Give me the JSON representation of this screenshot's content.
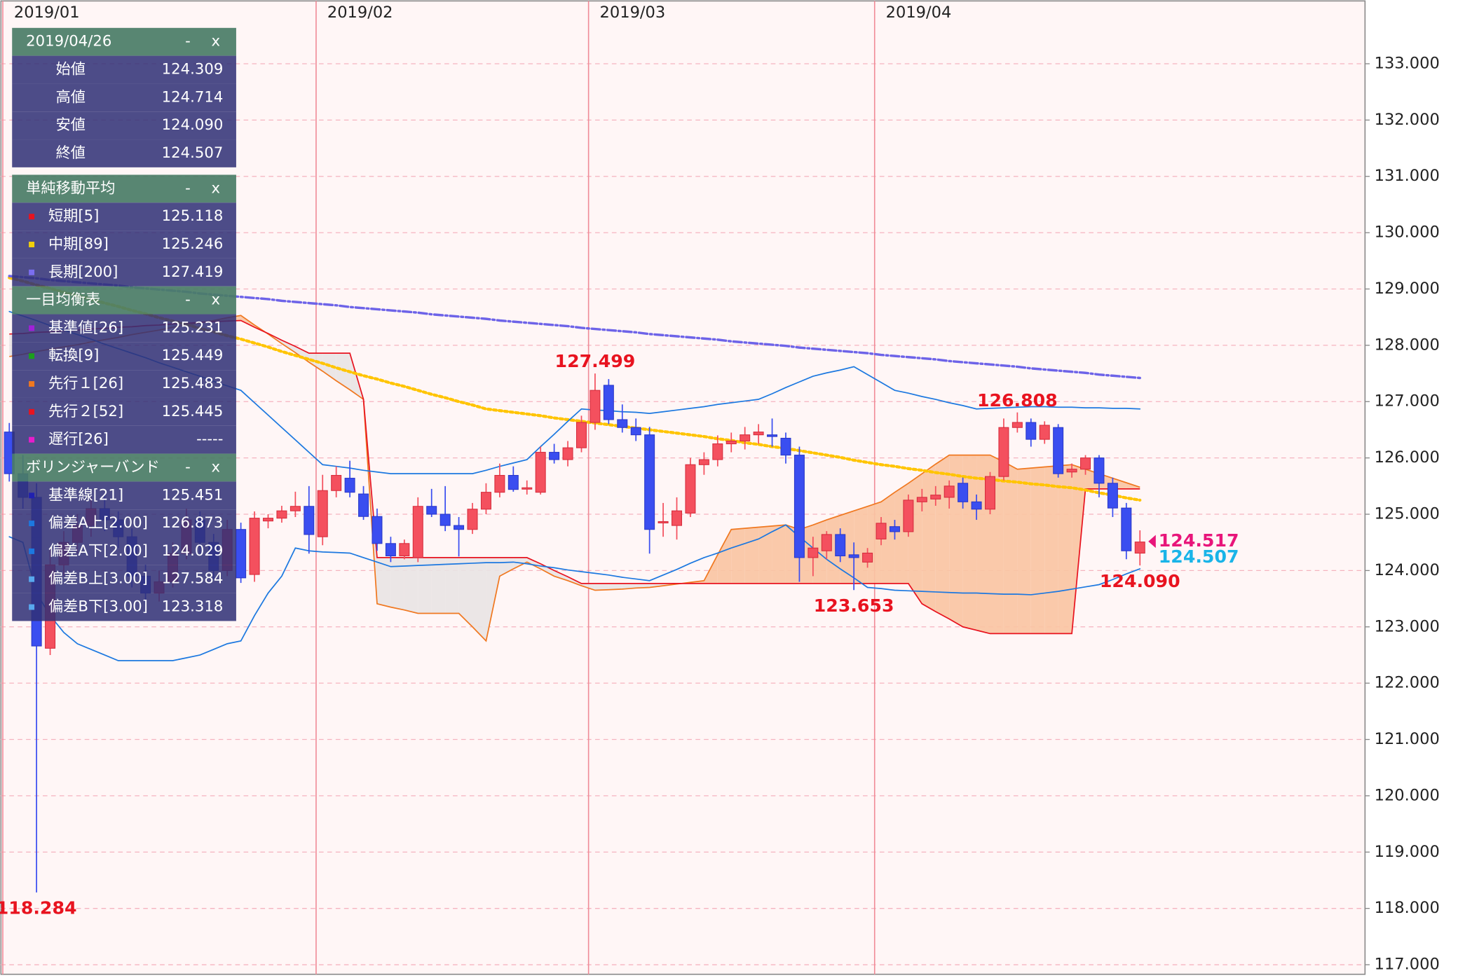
{
  "chart_data": {
    "type": "candlestick",
    "categories": [
      "2019/01",
      null,
      null,
      null,
      null,
      null,
      null,
      null,
      null,
      null,
      null,
      null,
      null,
      null,
      null,
      null,
      null,
      null,
      null,
      null,
      null,
      null,
      null,
      "2019/02",
      null,
      null,
      null,
      null,
      null,
      null,
      null,
      null,
      null,
      null,
      null,
      null,
      null,
      null,
      null,
      null,
      null,
      null,
      null,
      "2019/03",
      null,
      null,
      null,
      null,
      null,
      null,
      null,
      null,
      null,
      null,
      null,
      null,
      null,
      null,
      null,
      null,
      null,
      null,
      null,
      null,
      "2019/04",
      null,
      null,
      null,
      null,
      null,
      null,
      null,
      null,
      null,
      null,
      null,
      null,
      null,
      null,
      null,
      null,
      null,
      null,
      null
    ],
    "open": [
      126.46,
      125.72,
      125.3,
      122.62,
      124.1,
      124.5,
      124.8,
      125.1,
      124.9,
      124.6,
      123.9,
      123.6,
      123.8,
      124.3,
      124.9,
      124.5,
      124.0,
      124.73,
      123.93,
      124.88,
      124.93,
      125.06,
      125.14,
      124.6,
      125.42,
      125.64,
      125.36,
      124.96,
      124.48,
      124.26,
      124.23,
      125.14,
      125.0,
      124.8,
      124.73,
      125.09,
      125.39,
      125.69,
      125.45,
      125.39,
      126.1,
      125.97,
      126.18,
      126.63,
      127.29,
      126.68,
      126.54,
      126.41,
      124.85,
      124.8,
      125.02,
      125.88,
      125.97,
      126.25,
      126.3,
      126.41,
      126.41,
      126.35,
      126.05,
      124.23,
      124.35,
      124.64,
      124.28,
      124.15,
      124.56,
      124.78,
      124.69,
      125.22,
      125.27,
      125.3,
      125.55,
      125.22,
      125.09,
      125.67,
      126.54,
      126.63,
      126.33,
      126.54,
      125.75,
      125.8,
      126.0,
      125.55,
      125.11,
      124.309
    ],
    "high": [
      126.62,
      126.05,
      125.55,
      124.4,
      124.7,
      125.0,
      125.3,
      125.35,
      125.05,
      124.75,
      124.1,
      124.0,
      124.5,
      125.1,
      125.05,
      124.65,
      124.9,
      124.85,
      125.05,
      125.0,
      125.15,
      125.4,
      125.5,
      125.7,
      125.85,
      125.95,
      125.5,
      125.1,
      124.6,
      124.55,
      125.3,
      125.45,
      125.5,
      124.95,
      125.2,
      125.55,
      125.9,
      125.85,
      125.6,
      126.2,
      126.25,
      126.3,
      126.75,
      127.499,
      127.4,
      126.95,
      126.7,
      126.55,
      125.2,
      125.3,
      126.0,
      126.1,
      126.4,
      126.45,
      126.55,
      126.6,
      126.7,
      126.45,
      126.2,
      124.6,
      124.7,
      124.75,
      124.5,
      124.4,
      124.95,
      124.9,
      125.35,
      125.45,
      125.5,
      125.6,
      125.65,
      125.35,
      125.75,
      126.7,
      126.808,
      126.7,
      126.65,
      126.6,
      125.9,
      126.05,
      126.05,
      125.65,
      125.2,
      124.714
    ],
    "low": [
      125.58,
      125.1,
      118.284,
      122.5,
      123.9,
      124.3,
      124.6,
      124.7,
      124.4,
      123.7,
      123.4,
      123.45,
      123.7,
      124.2,
      124.3,
      123.85,
      123.9,
      123.78,
      123.8,
      124.75,
      124.85,
      124.95,
      124.3,
      124.45,
      125.3,
      125.3,
      124.9,
      124.35,
      124.15,
      124.2,
      124.15,
      124.95,
      124.7,
      124.25,
      124.65,
      125.0,
      125.3,
      125.4,
      125.35,
      125.35,
      125.9,
      125.85,
      126.1,
      126.5,
      126.6,
      126.45,
      126.3,
      124.3,
      124.6,
      124.55,
      124.95,
      125.7,
      125.85,
      126.1,
      126.15,
      126.25,
      126.2,
      125.9,
      123.8,
      123.9,
      124.2,
      124.15,
      123.653,
      124.05,
      124.45,
      124.55,
      124.6,
      125.05,
      125.15,
      125.1,
      125.1,
      124.9,
      125.0,
      125.6,
      126.45,
      126.2,
      126.25,
      125.65,
      125.65,
      125.7,
      125.3,
      124.95,
      124.2,
      124.09
    ],
    "close": [
      125.72,
      125.3,
      122.66,
      124.1,
      124.5,
      124.8,
      125.1,
      124.9,
      124.6,
      123.9,
      123.6,
      123.8,
      124.3,
      124.9,
      124.5,
      124.0,
      124.73,
      123.87,
      124.93,
      124.93,
      125.06,
      125.14,
      124.64,
      125.42,
      125.69,
      125.39,
      124.96,
      124.48,
      124.26,
      124.48,
      125.14,
      125.0,
      124.8,
      124.73,
      125.09,
      125.39,
      125.69,
      125.44,
      125.47,
      126.1,
      125.97,
      126.18,
      126.63,
      127.2,
      126.68,
      126.54,
      126.41,
      124.73,
      124.87,
      125.06,
      125.88,
      125.97,
      126.25,
      126.3,
      126.41,
      126.46,
      126.38,
      126.05,
      124.23,
      124.4,
      124.64,
      124.26,
      124.23,
      124.31,
      124.84,
      124.69,
      125.25,
      125.3,
      125.34,
      125.5,
      125.22,
      125.09,
      125.67,
      126.54,
      126.63,
      126.33,
      126.58,
      125.72,
      125.8,
      126.0,
      125.55,
      125.11,
      124.35,
      124.507
    ],
    "up_color": "#f4505e",
    "down_color": "#3a4ef0",
    "series": [
      {
        "color": "#ffc400",
        "dash": "dotted",
        "values": [
          129.2,
          129.14,
          129.07,
          129.01,
          128.94,
          128.88,
          128.82,
          128.75,
          128.69,
          128.62,
          128.56,
          128.49,
          128.43,
          128.37,
          128.3,
          128.24,
          128.17,
          128.11,
          128.04,
          127.97,
          127.89,
          127.82,
          127.75,
          127.68,
          127.6,
          127.53,
          127.46,
          127.4,
          127.33,
          127.27,
          127.2,
          127.13,
          127.07,
          127.0,
          126.94,
          126.87,
          126.84,
          126.81,
          126.78,
          126.75,
          126.71,
          126.68,
          126.65,
          126.62,
          126.59,
          126.56,
          126.53,
          126.5,
          126.47,
          126.44,
          126.41,
          126.38,
          126.34,
          126.31,
          126.27,
          126.24,
          126.2,
          126.17,
          126.13,
          126.09,
          126.05,
          126.01,
          125.96,
          125.92,
          125.88,
          125.85,
          125.81,
          125.78,
          125.74,
          125.71,
          125.67,
          125.64,
          125.62,
          125.59,
          125.57,
          125.54,
          125.52,
          125.49,
          125.47,
          125.43,
          125.38,
          125.34,
          125.29,
          125.25
        ]
      },
      {
        "color": "#6d63e8",
        "dash": "dash-dot",
        "values": [
          129.23,
          129.21,
          129.19,
          129.16,
          129.14,
          129.12,
          129.1,
          129.08,
          129.06,
          129.03,
          129.01,
          128.99,
          128.97,
          128.95,
          128.92,
          128.9,
          128.88,
          128.86,
          128.84,
          128.82,
          128.79,
          128.77,
          128.75,
          128.73,
          128.71,
          128.68,
          128.66,
          128.64,
          128.62,
          128.6,
          128.58,
          128.55,
          128.53,
          128.51,
          128.49,
          128.47,
          128.44,
          128.42,
          128.4,
          128.38,
          128.36,
          128.34,
          128.31,
          128.29,
          128.27,
          128.25,
          128.23,
          128.2,
          128.18,
          128.16,
          128.14,
          128.12,
          128.1,
          128.07,
          128.05,
          128.03,
          128.01,
          127.99,
          127.96,
          127.94,
          127.92,
          127.9,
          127.88,
          127.86,
          127.83,
          127.81,
          127.79,
          127.77,
          127.75,
          127.72,
          127.7,
          127.68,
          127.66,
          127.64,
          127.62,
          127.59,
          127.57,
          127.55,
          127.53,
          127.51,
          127.48,
          127.46,
          127.44,
          127.42
        ]
      },
      {
        "color": "#1c78e0",
        "dash": "solid",
        "values": [
          128.6,
          128.52,
          128.44,
          128.35,
          128.27,
          128.19,
          128.11,
          128.02,
          127.94,
          127.86,
          127.78,
          127.69,
          127.61,
          127.53,
          127.45,
          127.36,
          127.28,
          127.2,
          126.98,
          126.76,
          126.54,
          126.32,
          126.1,
          125.88,
          125.85,
          125.82,
          125.78,
          125.75,
          125.72,
          125.72,
          125.72,
          125.72,
          125.72,
          125.72,
          125.72,
          125.78,
          125.85,
          125.91,
          125.97,
          126.2,
          126.42,
          126.65,
          126.87,
          126.85,
          126.84,
          126.82,
          126.81,
          126.79,
          126.82,
          126.85,
          126.88,
          126.91,
          126.95,
          126.98,
          127.01,
          127.04,
          127.14,
          127.25,
          127.35,
          127.45,
          127.51,
          127.56,
          127.62,
          127.48,
          127.34,
          127.2,
          127.15,
          127.09,
          127.04,
          126.98,
          126.93,
          126.87,
          126.88,
          126.89,
          126.9,
          126.91,
          126.91,
          126.9,
          126.9,
          126.89,
          126.89,
          126.88,
          126.88,
          126.87
        ]
      },
      {
        "color": "#1c78e0",
        "dash": "solid",
        "values": [
          124.6,
          124.5,
          123.6,
          123.2,
          122.9,
          122.7,
          122.6,
          122.5,
          122.4,
          122.4,
          122.4,
          122.4,
          122.4,
          122.45,
          122.5,
          122.6,
          122.7,
          122.75,
          123.2,
          123.6,
          123.9,
          124.4,
          124.35,
          124.33,
          124.32,
          124.31,
          124.23,
          124.15,
          124.07,
          124.08,
          124.09,
          124.1,
          124.11,
          124.12,
          124.13,
          124.14,
          124.14,
          124.15,
          124.12,
          124.08,
          124.05,
          124.01,
          123.98,
          123.95,
          123.92,
          123.88,
          123.85,
          123.82,
          123.92,
          124.02,
          124.13,
          124.23,
          124.31,
          124.4,
          124.48,
          124.56,
          124.69,
          124.81,
          124.6,
          124.4,
          124.2,
          124.03,
          123.87,
          123.7,
          123.68,
          123.65,
          123.64,
          123.63,
          123.62,
          123.61,
          123.6,
          123.6,
          123.59,
          123.58,
          123.58,
          123.57,
          123.6,
          123.63,
          123.67,
          123.71,
          123.75,
          123.84,
          123.94,
          124.03
        ]
      }
    ],
    "cloud": {
      "a_color": "#f07820",
      "b_color": "#e8131f",
      "up_fill": "#f9c4a2",
      "down_fill": "#e9e4e4",
      "a": [
        127.8,
        127.84,
        127.89,
        127.93,
        127.97,
        128.01,
        128.06,
        128.1,
        128.14,
        128.19,
        128.23,
        128.27,
        128.32,
        128.36,
        128.4,
        128.44,
        128.49,
        128.53,
        128.36,
        128.2,
        128.03,
        127.87,
        127.7,
        127.54,
        127.37,
        127.21,
        127.04,
        123.41,
        123.35,
        123.3,
        123.24,
        123.24,
        123.24,
        123.24,
        123.0,
        122.75,
        123.9,
        124.03,
        124.15,
        124.03,
        123.9,
        123.82,
        123.73,
        123.65,
        123.66,
        123.67,
        123.69,
        123.7,
        123.73,
        123.76,
        123.79,
        123.82,
        124.28,
        124.73,
        124.75,
        124.77,
        124.79,
        124.81,
        124.73,
        124.81,
        124.9,
        124.98,
        125.06,
        125.14,
        125.22,
        125.39,
        125.55,
        125.72,
        125.89,
        126.05,
        126.05,
        126.05,
        126.05,
        125.93,
        125.8,
        125.82,
        125.84,
        125.86,
        125.88,
        125.8,
        125.72,
        125.64,
        125.56,
        125.48
      ],
      "b": [
        128.2,
        128.21,
        128.23,
        128.24,
        128.26,
        128.27,
        128.29,
        128.3,
        128.32,
        128.33,
        128.35,
        128.36,
        128.38,
        128.39,
        128.41,
        128.42,
        128.43,
        128.44,
        128.32,
        128.21,
        128.09,
        127.98,
        127.86,
        127.86,
        127.86,
        127.86,
        127.04,
        124.23,
        124.23,
        124.23,
        124.23,
        124.23,
        124.23,
        124.23,
        124.23,
        124.23,
        124.23,
        124.23,
        124.23,
        124.12,
        124.0,
        123.89,
        123.77,
        123.77,
        123.77,
        123.77,
        123.77,
        123.77,
        123.77,
        123.77,
        123.77,
        123.77,
        123.77,
        123.77,
        123.77,
        123.77,
        123.77,
        123.77,
        123.77,
        123.77,
        123.77,
        123.77,
        123.77,
        123.77,
        123.77,
        123.77,
        123.77,
        123.41,
        123.27,
        123.14,
        123.0,
        122.94,
        122.88,
        122.88,
        122.88,
        122.88,
        122.88,
        122.88,
        122.88,
        125.45,
        125.45,
        125.45,
        125.45,
        125.45
      ]
    },
    "annotations": [
      {
        "value": 127.499,
        "label": "127.499"
      },
      {
        "value": 126.808,
        "label": "126.808"
      },
      {
        "value": 123.653,
        "label": "123.653"
      },
      {
        "value": 124.09,
        "label": "124.090"
      },
      {
        "value": 118.284,
        "label": "118.284"
      }
    ],
    "price_lines": [
      {
        "value": 124.517,
        "color": "#e8157a"
      },
      {
        "value": 124.507,
        "color": "#19b4e8"
      }
    ],
    "ylim": [
      116.83,
      134.0
    ],
    "yticks": [
      {
        "value": 117,
        "label": "117.000"
      },
      {
        "value": 118,
        "label": "118.000"
      },
      {
        "value": 119,
        "label": "119.000"
      },
      {
        "value": 120,
        "label": "120.000"
      },
      {
        "value": 121,
        "label": "121.000"
      },
      {
        "value": 122,
        "label": "122.000"
      },
      {
        "value": 123,
        "label": "123.000"
      },
      {
        "value": 124,
        "label": "124.000"
      },
      {
        "value": 125,
        "label": "125.000"
      },
      {
        "value": 126,
        "label": "126.000"
      },
      {
        "value": 127,
        "label": "127.000"
      },
      {
        "value": 128,
        "label": "128.000"
      },
      {
        "value": 129,
        "label": "129.000"
      },
      {
        "value": 130,
        "label": "130.000"
      },
      {
        "value": 131,
        "label": "131.000"
      },
      {
        "value": 132,
        "label": "132.000"
      },
      {
        "value": 133,
        "label": "133.000"
      }
    ],
    "grid": true
  },
  "info_panel": {
    "controls": [
      "-",
      "x"
    ],
    "sections": [
      {
        "title": "2019/04/26",
        "rows": [
          {
            "label": "始値",
            "value": "124.309"
          },
          {
            "label": "高値",
            "value": "124.714"
          },
          {
            "label": "安値",
            "value": "124.090"
          },
          {
            "label": "終値",
            "value": "124.507"
          }
        ]
      },
      {
        "title": "単純移動平均",
        "rows": [
          {
            "label": "短期[5]",
            "value": "125.118",
            "color": "#e8131f"
          },
          {
            "label": "中期[89]",
            "value": "125.246",
            "color": "#f2d00a"
          },
          {
            "label": "長期[200]",
            "value": "127.419",
            "color": "#7b6ef0"
          }
        ]
      },
      {
        "title": "一目均衡表",
        "rows": [
          {
            "label": "基準値[26]",
            "value": "125.231",
            "color": "#a020d8"
          },
          {
            "label": "転換[9]",
            "value": "125.449",
            "color": "#1ca01c"
          },
          {
            "label": "先行１[26]",
            "value": "125.483",
            "color": "#f07820"
          },
          {
            "label": "先行２[52]",
            "value": "125.445",
            "color": "#e8131f"
          },
          {
            "label": "遅行[26]",
            "value": "-----",
            "color": "#e81ccc"
          }
        ]
      },
      {
        "title": "ボリンジャーバンド",
        "rows": [
          {
            "label": "基準線[21]",
            "value": "125.451",
            "color": "#2020b0"
          },
          {
            "label": "偏差A上[2.00]",
            "value": "126.873",
            "color": "#1c78e0"
          },
          {
            "label": "偏差A下[2.00]",
            "value": "124.029",
            "color": "#1c78e0"
          },
          {
            "label": "偏差B上[3.00]",
            "value": "127.584",
            "color": "#58a8ee"
          },
          {
            "label": "偏差B下[3.00]",
            "value": "123.318",
            "color": "#58a8ee"
          }
        ]
      }
    ]
  }
}
